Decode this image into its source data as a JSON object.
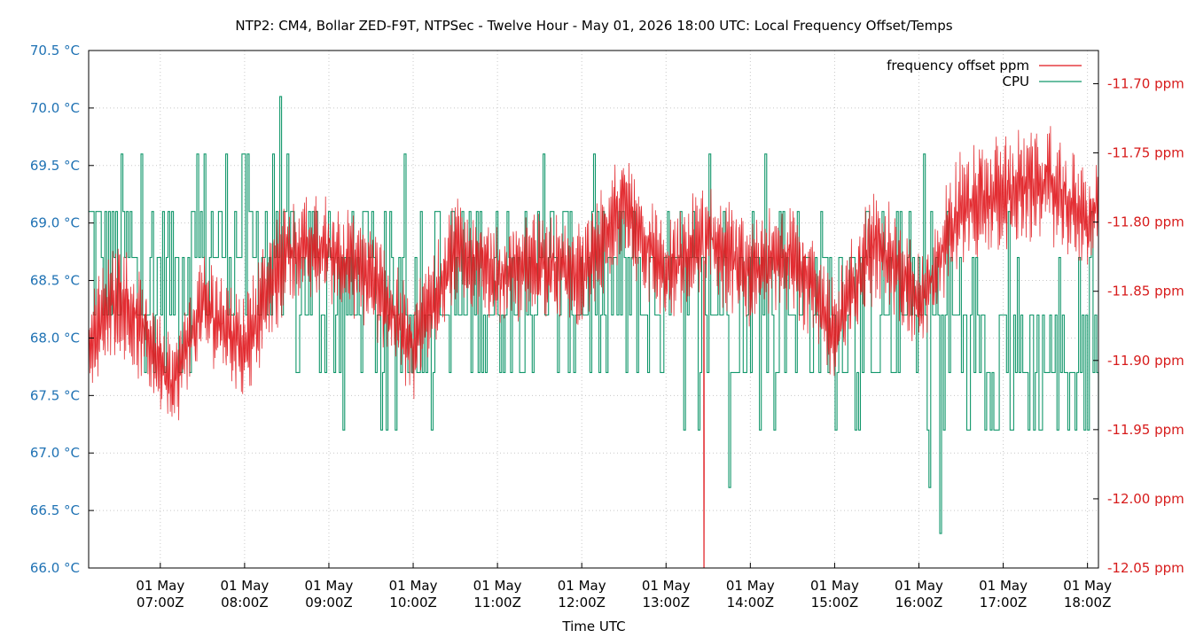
{
  "chart_data": {
    "type": "line",
    "title": "NTP2: CM4, Bollar ZED-F9T, NTPSec - Twelve Hour - May 01, 2026 18:00 UTC: Local Frequency Offset/Temps",
    "xlabel": "Time UTC",
    "x_ticks": [
      [
        "01 May",
        "07:00Z"
      ],
      [
        "01 May",
        "08:00Z"
      ],
      [
        "01 May",
        "09:00Z"
      ],
      [
        "01 May",
        "10:00Z"
      ],
      [
        "01 May",
        "11:00Z"
      ],
      [
        "01 May",
        "12:00Z"
      ],
      [
        "01 May",
        "13:00Z"
      ],
      [
        "01 May",
        "14:00Z"
      ],
      [
        "01 May",
        "15:00Z"
      ],
      [
        "01 May",
        "16:00Z"
      ],
      [
        "01 May",
        "17:00Z"
      ],
      [
        "01 May",
        "18:00Z"
      ]
    ],
    "xlim_hours": [
      6.15,
      18.13
    ],
    "y_left": {
      "ticks": [
        "66.0 °C",
        "66.5 °C",
        "67.0 °C",
        "67.5 °C",
        "68.0 °C",
        "68.5 °C",
        "69.0 °C",
        "69.5 °C",
        "70.0 °C",
        "70.5 °C"
      ],
      "range": [
        66.0,
        70.5
      ],
      "color": "#1f72b4"
    },
    "y_right": {
      "ticks": [
        "-12.05 ppm",
        "-12.00 ppm",
        "-11.95 ppm",
        "-11.90 ppm",
        "-11.85 ppm",
        "-11.80 ppm",
        "-11.75 ppm",
        "-11.70 ppm"
      ],
      "range": [
        -12.05,
        -11.676
      ],
      "color": "#d71b1b"
    },
    "grid": true,
    "legend_position": "top-right",
    "series": [
      {
        "name": "frequency offset ppm",
        "axis": "right",
        "color": "#e0161c",
        "x_hours": [
          6.15,
          6.5,
          7.0,
          7.15,
          7.5,
          8.0,
          8.5,
          9.0,
          9.5,
          10.0,
          10.5,
          11.0,
          11.5,
          12.0,
          12.5,
          13.0,
          13.5,
          14.0,
          14.5,
          15.0,
          15.5,
          16.0,
          16.5,
          17.0,
          17.5,
          18.0,
          18.13
        ],
        "center": [
          -11.89,
          -11.85,
          -11.9,
          -11.92,
          -11.86,
          -11.89,
          -11.82,
          -11.82,
          -11.84,
          -11.89,
          -11.82,
          -11.84,
          -11.83,
          -11.84,
          -11.79,
          -11.84,
          -11.81,
          -11.84,
          -11.82,
          -11.88,
          -11.81,
          -11.86,
          -11.79,
          -11.78,
          -11.77,
          -11.8,
          -11.79
        ],
        "amplitude": [
          0.035,
          0.045,
          0.04,
          0.035,
          0.04,
          0.04,
          0.045,
          0.04,
          0.04,
          0.04,
          0.04,
          0.04,
          0.04,
          0.04,
          0.045,
          0.04,
          0.045,
          0.04,
          0.045,
          0.04,
          0.045,
          0.04,
          0.045,
          0.045,
          0.045,
          0.04,
          0.04
        ],
        "spike": {
          "x_hours": 13.45,
          "value": -12.05
        }
      },
      {
        "name": "CPU",
        "axis": "left",
        "color": "#12976b",
        "levels_c": [
          67.2,
          67.7,
          68.2,
          68.7,
          69.1,
          69.6,
          70.1
        ],
        "x_hours": [
          6.15,
          7.0,
          7.5,
          8.0,
          9.0,
          10.0,
          11.0,
          12.0,
          13.0,
          14.0,
          15.0,
          16.0,
          16.3,
          17.0,
          17.5,
          18.0,
          18.13
        ],
        "center": [
          68.7,
          68.5,
          68.7,
          68.8,
          68.4,
          68.4,
          68.4,
          68.4,
          68.3,
          68.4,
          68.3,
          68.2,
          68.3,
          67.9,
          67.8,
          67.9,
          68.0
        ],
        "dips": [
          {
            "x_hours": 13.75,
            "value_c": 66.7
          },
          {
            "x_hours": 16.12,
            "value_c": 66.7
          },
          {
            "x_hours": 16.25,
            "value_c": 66.3
          }
        ]
      }
    ]
  }
}
